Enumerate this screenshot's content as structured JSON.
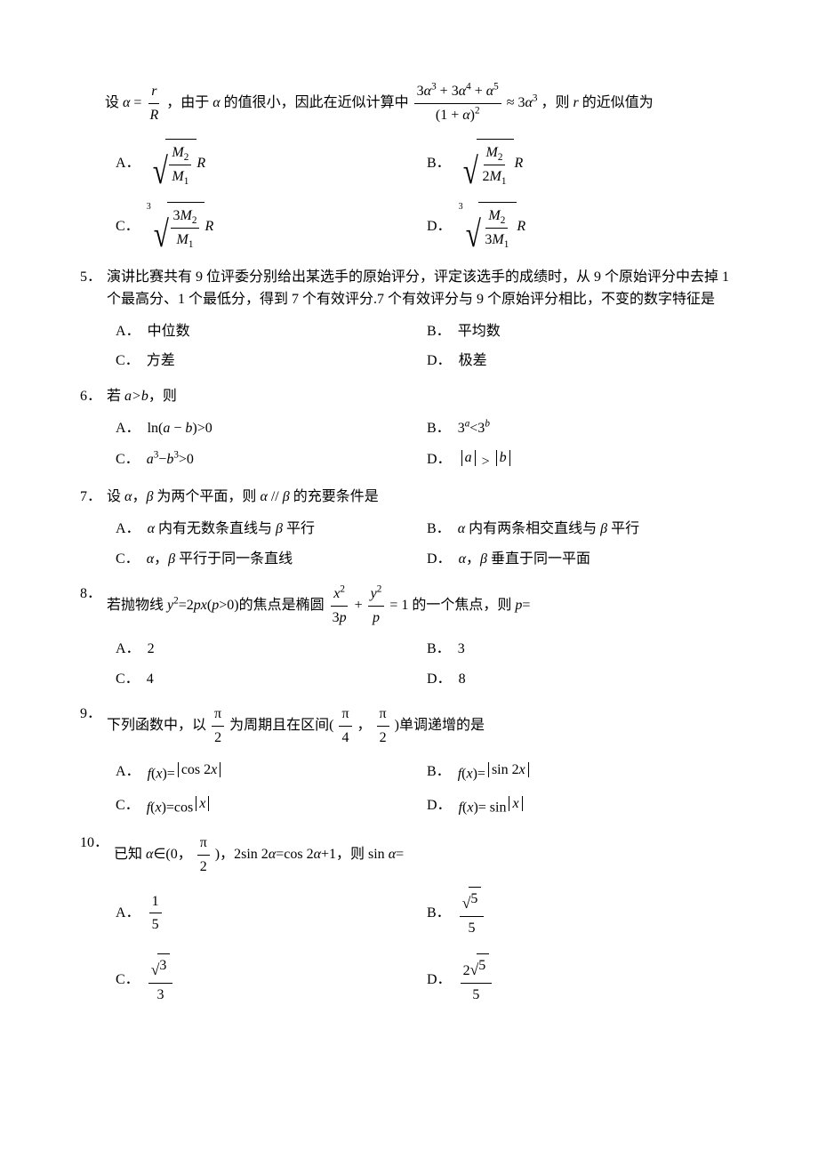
{
  "preamble": {
    "line1_parts": [
      "设",
      "，由于",
      "的值很小，因此在近似计算中",
      "，则",
      "的近似值为"
    ],
    "alpha_eq_parts": [
      "α",
      "=",
      "r",
      "R"
    ],
    "approx_num": "3α³ + 3α⁴ + α⁵",
    "approx_den": "(1 + α)²",
    "approx_rhs": "≈ 3α³"
  },
  "q4_choices": {
    "A": {
      "root_idx": "",
      "frac_num": "M₂",
      "frac_den": "M₁",
      "suffix": "R"
    },
    "B": {
      "root_idx": "",
      "frac_num": "M₂",
      "frac_den": "2M₁",
      "suffix": "R"
    },
    "C": {
      "root_idx": "3",
      "frac_num": "3M₂",
      "frac_den": "M₁",
      "suffix": "R"
    },
    "D": {
      "root_idx": "3",
      "frac_num": "M₂",
      "frac_den": "3M₁",
      "suffix": "R"
    }
  },
  "q5": {
    "num": "5．",
    "text": "演讲比赛共有 9 位评委分别给出某选手的原始评分，评定该选手的成绩时，从 9 个原始评分中去掉 1 个最高分、1 个最低分，得到 7 个有效评分.7 个有效评分与 9 个原始评分相比，不变的数字特征是",
    "A": "中位数",
    "B": "平均数",
    "C": "方差",
    "D": "极差"
  },
  "q6": {
    "num": "6．",
    "text_pre": "若 ",
    "ab": "a>b",
    "text_post": "，则",
    "A": "ln(a − b)>0",
    "B_pre": "3",
    "B_supA": "a",
    "B_mid": "<3",
    "B_supB": "b",
    "C": "a³−b³>0",
    "D_a": "a",
    "D_gt": ">",
    "D_b": "b"
  },
  "q7": {
    "num": "7．",
    "text": "设 α，β 为两个平面，则 α // β 的充要条件是",
    "A": "α 内有无数条直线与 β 平行",
    "B": "α 内有两条相交直线与 β 平行",
    "C": "α，β 平行于同一条直线",
    "D": "α，β 垂直于同一平面"
  },
  "q8": {
    "num": "8．",
    "text_pre": "若抛物线 ",
    "parabola": "y²=2px(p>0)",
    "text_mid": "的焦点是椭圆",
    "frac1_num": "x²",
    "frac1_den": "3p",
    "plus": "+",
    "frac2_num": "y²",
    "frac2_den": "p",
    "eq1": "= 1",
    "text_post": "的一个焦点，则 p=",
    "A": "2",
    "B": "3",
    "C": "4",
    "D": "8"
  },
  "q9": {
    "num": "9．",
    "text_pre": "下列函数中，以",
    "period_num": "π",
    "period_den": "2",
    "text_mid": "为周期且在区间(",
    "int_a_num": "π",
    "int_a_den": "4",
    "comma": "，",
    "int_b_num": "π",
    "int_b_den": "2",
    "text_post": ")单调递增的是",
    "A_pre": "f(x)=",
    "A_in": "cos 2x",
    "B_pre": "f(x)=",
    "B_in": "sin 2x",
    "C_pre": "f(x)=cos",
    "C_in": "x",
    "D_pre": "f(x)= sin",
    "D_in": "x"
  },
  "q10": {
    "num": "10．",
    "text_pre": "已知 α∈(0，",
    "half_num": "π",
    "half_den": "2",
    "text_mid": ")，2sin 2α=cos 2α+1，则 sin α=",
    "A_num": "1",
    "A_den": "5",
    "B_rad": "5",
    "B_den": "5",
    "C_rad": "3",
    "C_den": "3",
    "D_pre": "2",
    "D_rad": "5",
    "D_den": "5"
  }
}
